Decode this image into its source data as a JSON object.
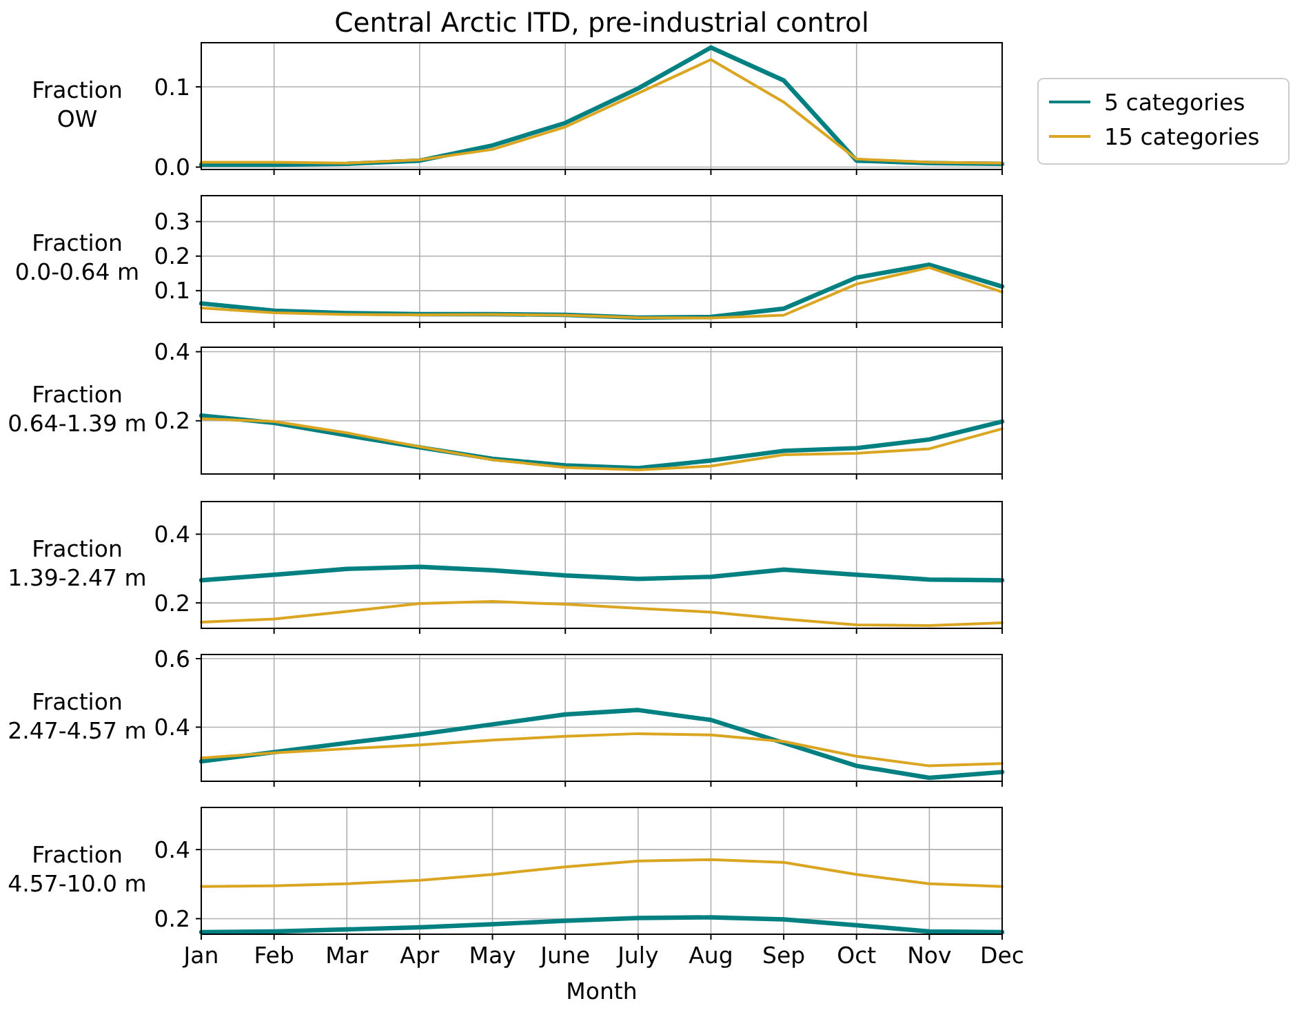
{
  "chart_data": [
    {
      "type": "line",
      "title": "Central Arctic ITD, pre-industrial control",
      "ylabel": "Fraction\nOW",
      "categories": [
        null,
        null,
        null,
        null,
        null,
        null,
        null,
        null,
        null,
        null,
        null,
        null
      ],
      "ylim": [
        -0.003,
        0.155
      ],
      "yticks": [
        {
          "value": 0,
          "label": "0.0"
        },
        0.1
      ],
      "tick_labels": "y",
      "grid": true,
      "legend": "right",
      "line_style": "solid",
      "series": [
        {
          "name": "5 categories",
          "color": "#008080",
          "values": [
            0.003,
            0.003,
            0.004,
            0.008,
            0.027,
            0.055,
            0.098,
            0.149,
            0.108,
            0.008,
            0.005,
            0.004
          ]
        },
        {
          "name": "15 categories",
          "color": "#daa520",
          "values": [
            0.006,
            0.006,
            0.005,
            0.009,
            0.022,
            0.05,
            0.092,
            0.134,
            0.081,
            0.01,
            0.006,
            0.005
          ]
        }
      ]
    },
    {
      "type": "line",
      "ylabel": "Fraction\n0.0-0.64 m",
      "categories": [
        null,
        null,
        null,
        null,
        null,
        null,
        null,
        null,
        null,
        null,
        null,
        null
      ],
      "ylim": [
        0.008,
        0.375
      ],
      "yticks": [
        0.1,
        0.2,
        0.3
      ],
      "tick_labels": "y",
      "grid": true,
      "line_style": "solid",
      "series": [
        {
          "color": "#008080",
          "values": [
            0.063,
            0.042,
            0.035,
            0.032,
            0.032,
            0.03,
            0.022,
            0.024,
            0.048,
            0.138,
            0.175,
            0.112
          ]
        },
        {
          "color": "#daa520",
          "values": [
            0.05,
            0.036,
            0.031,
            0.03,
            0.031,
            0.029,
            0.022,
            0.021,
            0.029,
            0.119,
            0.167,
            0.096
          ]
        }
      ]
    },
    {
      "type": "line",
      "ylabel": "Fraction\n0.64-1.39 m",
      "categories": [
        null,
        null,
        null,
        null,
        null,
        null,
        null,
        null,
        null,
        null,
        null,
        null
      ],
      "ylim": [
        0.046,
        0.413
      ],
      "yticks": [
        0.2,
        0.4
      ],
      "tick_labels": "y",
      "grid": true,
      "line_style": "solid",
      "series": [
        {
          "color": "#008080",
          "values": [
            0.215,
            0.194,
            0.158,
            0.123,
            0.09,
            0.071,
            0.063,
            0.085,
            0.113,
            0.121,
            0.146,
            0.198
          ]
        },
        {
          "color": "#daa520",
          "values": [
            0.206,
            0.198,
            0.165,
            0.125,
            0.087,
            0.065,
            0.058,
            0.069,
            0.102,
            0.106,
            0.119,
            0.177
          ]
        }
      ]
    },
    {
      "type": "line",
      "ylabel": "Fraction\n1.39-2.47 m",
      "categories": [
        null,
        null,
        null,
        null,
        null,
        null,
        null,
        null,
        null,
        null,
        null,
        null
      ],
      "ylim": [
        0.126,
        0.495
      ],
      "yticks": [
        0.2,
        0.4
      ],
      "tick_labels": "y",
      "grid": true,
      "line_style": "solid",
      "series": [
        {
          "color": "#008080",
          "values": [
            0.266,
            0.282,
            0.299,
            0.305,
            0.295,
            0.28,
            0.27,
            0.276,
            0.297,
            0.282,
            0.268,
            0.266
          ]
        },
        {
          "color": "#daa520",
          "values": [
            0.144,
            0.153,
            0.175,
            0.198,
            0.204,
            0.196,
            0.184,
            0.173,
            0.153,
            0.136,
            0.134,
            0.142
          ]
        }
      ]
    },
    {
      "type": "line",
      "ylabel": "Fraction\n2.47-4.57 m",
      "categories": [
        null,
        null,
        null,
        null,
        null,
        null,
        null,
        null,
        null,
        null,
        null,
        null
      ],
      "ylim": [
        0.242,
        0.612
      ],
      "yticks": [
        0.4,
        0.6
      ],
      "tick_labels": "y",
      "grid": true,
      "line_style": "solid",
      "series": [
        {
          "color": "#008080",
          "values": [
            0.3,
            0.327,
            0.354,
            0.379,
            0.408,
            0.437,
            0.45,
            0.421,
            0.354,
            0.287,
            0.252,
            0.269
          ]
        },
        {
          "color": "#daa520",
          "values": [
            0.31,
            0.325,
            0.337,
            0.348,
            0.362,
            0.373,
            0.381,
            0.377,
            0.358,
            0.315,
            0.287,
            0.294
          ]
        }
      ]
    },
    {
      "type": "line",
      "ylabel": "Fraction\n4.57-10.0 m",
      "xlabel": "Month",
      "categories": [
        "Jan",
        "Feb",
        "Mar",
        "Apr",
        "May",
        "June",
        "July",
        "Aug",
        "Sep",
        "Oct",
        "Nov",
        "Dec"
      ],
      "ylim": [
        0.155,
        0.522
      ],
      "yticks": [
        0.2,
        0.4
      ],
      "grid": true,
      "line_style": "solid",
      "series": [
        {
          "color": "#008080",
          "values": [
            0.161,
            0.163,
            0.169,
            0.175,
            0.184,
            0.194,
            0.202,
            0.204,
            0.198,
            0.181,
            0.163,
            0.161
          ]
        },
        {
          "color": "#daa520",
          "values": [
            0.293,
            0.295,
            0.301,
            0.311,
            0.328,
            0.35,
            0.367,
            0.371,
            0.363,
            0.328,
            0.301,
            0.293
          ]
        }
      ]
    }
  ]
}
